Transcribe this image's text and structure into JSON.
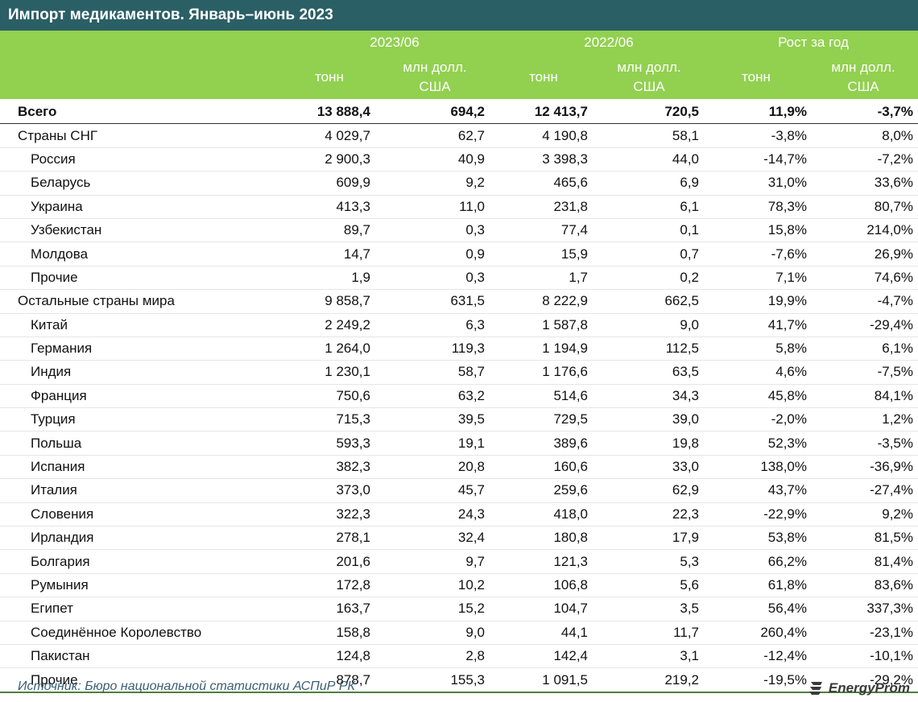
{
  "title": "Импорт медикаментов. Январь–июнь 2023",
  "header": {
    "groups": [
      "2023/06",
      "2022/06",
      "Рост за год"
    ],
    "sub_tons": "тонн",
    "sub_usd_line1": "млн долл.",
    "sub_usd_line2": "США"
  },
  "chart_data": {
    "type": "table",
    "title": "Импорт медикаментов. Январь–июнь 2023",
    "columns": [
      "2023/06 тонн",
      "2023/06 млн долл. США",
      "2022/06 тонн",
      "2022/06 млн долл. США",
      "Рост за год тонн",
      "Рост за год млн долл. США"
    ],
    "rows": [
      {
        "name": "Всего",
        "level": "total",
        "values": [
          "13 888,4",
          "694,2",
          "12 413,7",
          "720,5",
          "11,9%",
          "-3,7%"
        ]
      },
      {
        "name": "Страны СНГ",
        "level": "group",
        "values": [
          "4 029,7",
          "62,7",
          "4 190,8",
          "58,1",
          "-3,8%",
          "8,0%"
        ]
      },
      {
        "name": "Россия",
        "level": "child",
        "values": [
          "2 900,3",
          "40,9",
          "3 398,3",
          "44,0",
          "-14,7%",
          "-7,2%"
        ]
      },
      {
        "name": "Беларусь",
        "level": "child",
        "values": [
          "609,9",
          "9,2",
          "465,6",
          "6,9",
          "31,0%",
          "33,6%"
        ]
      },
      {
        "name": "Украина",
        "level": "child",
        "values": [
          "413,3",
          "11,0",
          "231,8",
          "6,1",
          "78,3%",
          "80,7%"
        ]
      },
      {
        "name": "Узбекистан",
        "level": "child",
        "values": [
          "89,7",
          "0,3",
          "77,4",
          "0,1",
          "15,8%",
          "214,0%"
        ]
      },
      {
        "name": "Молдова",
        "level": "child",
        "values": [
          "14,7",
          "0,9",
          "15,9",
          "0,7",
          "-7,6%",
          "26,9%"
        ]
      },
      {
        "name": "Прочие",
        "level": "child",
        "values": [
          "1,9",
          "0,3",
          "1,7",
          "0,2",
          "7,1%",
          "74,6%"
        ]
      },
      {
        "name": "Остальные страны мира",
        "level": "group",
        "values": [
          "9 858,7",
          "631,5",
          "8 222,9",
          "662,5",
          "19,9%",
          "-4,7%"
        ]
      },
      {
        "name": "Китай",
        "level": "child",
        "values": [
          "2 249,2",
          "6,3",
          "1 587,8",
          "9,0",
          "41,7%",
          "-29,4%"
        ]
      },
      {
        "name": "Германия",
        "level": "child",
        "values": [
          "1 264,0",
          "119,3",
          "1 194,9",
          "112,5",
          "5,8%",
          "6,1%"
        ]
      },
      {
        "name": "Индия",
        "level": "child",
        "values": [
          "1 230,1",
          "58,7",
          "1 176,6",
          "63,5",
          "4,6%",
          "-7,5%"
        ]
      },
      {
        "name": "Франция",
        "level": "child",
        "values": [
          "750,6",
          "63,2",
          "514,6",
          "34,3",
          "45,8%",
          "84,1%"
        ]
      },
      {
        "name": "Турция",
        "level": "child",
        "values": [
          "715,3",
          "39,5",
          "729,5",
          "39,0",
          "-2,0%",
          "1,2%"
        ]
      },
      {
        "name": "Польша",
        "level": "child",
        "values": [
          "593,3",
          "19,1",
          "389,6",
          "19,8",
          "52,3%",
          "-3,5%"
        ]
      },
      {
        "name": "Испания",
        "level": "child",
        "values": [
          "382,3",
          "20,8",
          "160,6",
          "33,0",
          "138,0%",
          "-36,9%"
        ]
      },
      {
        "name": "Италия",
        "level": "child",
        "values": [
          "373,0",
          "45,7",
          "259,6",
          "62,9",
          "43,7%",
          "-27,4%"
        ]
      },
      {
        "name": "Словения",
        "level": "child",
        "values": [
          "322,3",
          "24,3",
          "418,0",
          "22,3",
          "-22,9%",
          "9,2%"
        ]
      },
      {
        "name": "Ирландия",
        "level": "child",
        "values": [
          "278,1",
          "32,4",
          "180,8",
          "17,9",
          "53,8%",
          "81,5%"
        ]
      },
      {
        "name": "Болгария",
        "level": "child",
        "values": [
          "201,6",
          "9,7",
          "121,3",
          "5,3",
          "66,2%",
          "81,4%"
        ]
      },
      {
        "name": "Румыния",
        "level": "child",
        "values": [
          "172,8",
          "10,2",
          "106,8",
          "5,6",
          "61,8%",
          "83,6%"
        ]
      },
      {
        "name": "Египет",
        "level": "child",
        "values": [
          "163,7",
          "15,2",
          "104,7",
          "3,5",
          "56,4%",
          "337,3%"
        ]
      },
      {
        "name": "Соединённое Королевство",
        "level": "child",
        "values": [
          "158,8",
          "9,0",
          "44,1",
          "11,7",
          "260,4%",
          "-23,1%"
        ]
      },
      {
        "name": "Пакистан",
        "level": "child",
        "values": [
          "124,8",
          "2,8",
          "142,4",
          "3,1",
          "-12,4%",
          "-10,1%"
        ]
      },
      {
        "name": "Прочие",
        "level": "child",
        "values": [
          "878,7",
          "155,3",
          "1 091,5",
          "219,2",
          "-19,5%",
          "-29,2%"
        ]
      }
    ]
  },
  "footer": {
    "source": "Источник: Бюро национальной статистики АСПиР РК",
    "logo_text": "EnergyProm",
    "logo_icon": "energyprom-logo-icon"
  },
  "colors": {
    "title_bg": "#2b5f66",
    "header_bg": "#92d050",
    "source_text": "#3b5f73"
  }
}
